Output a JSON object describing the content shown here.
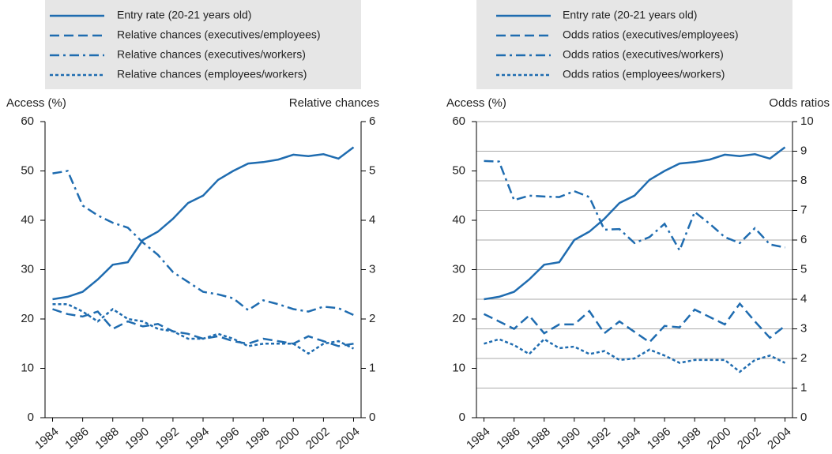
{
  "chart_data": [
    {
      "type": "line",
      "legend": "top",
      "grid": false,
      "y_label": "Access (%)",
      "y2_label": "Relative chances",
      "x": [
        1984,
        1985,
        1986,
        1987,
        1988,
        1989,
        1990,
        1991,
        1992,
        1993,
        1994,
        1995,
        1996,
        1997,
        1998,
        1999,
        2000,
        2001,
        2002,
        2003,
        2004
      ],
      "xlim": [
        1983.5,
        2004.5
      ],
      "xticks": [
        1984,
        1986,
        1988,
        1990,
        1992,
        1994,
        1996,
        1998,
        2000,
        2002,
        2004
      ],
      "ylim": [
        0,
        60
      ],
      "yticks": [
        0,
        10,
        20,
        30,
        40,
        50,
        60
      ],
      "y2lim": [
        0,
        6
      ],
      "y2ticks": [
        0,
        1,
        2,
        3,
        4,
        5,
        6
      ],
      "series": [
        {
          "name": "Entry rate (20-21 years old)",
          "color": "#1f6cb0",
          "dash": "solid",
          "values": [
            24,
            24.5,
            25.5,
            28,
            31,
            31.5,
            36,
            37.7,
            40.3,
            43.5,
            45,
            48.2,
            50,
            51.5,
            51.8,
            52.3,
            53.3,
            53,
            53.4,
            52.5,
            54.8
          ]
        },
        {
          "name": "Relative chances (executives/employees)",
          "color": "#1f6cb0",
          "dash": "dashed",
          "axis": "y2",
          "values": [
            2.2,
            2.1,
            2.05,
            2.15,
            1.8,
            1.95,
            1.85,
            1.9,
            1.75,
            1.7,
            1.6,
            1.65,
            1.55,
            1.5,
            1.6,
            1.55,
            1.5,
            1.65,
            1.55,
            1.45,
            1.5
          ]
        },
        {
          "name": "Relative chances (executives/workers)",
          "color": "#1f6cb0",
          "dash": "dashdot",
          "axis": "y2",
          "values": [
            4.95,
            5.0,
            4.3,
            4.1,
            3.95,
            3.85,
            3.55,
            3.3,
            2.95,
            2.75,
            2.55,
            2.5,
            2.42,
            2.18,
            2.38,
            2.3,
            2.2,
            2.15,
            2.25,
            2.22,
            2.08
          ]
        },
        {
          "name": "Relative chances (employees/workers)",
          "color": "#1f6cb0",
          "dash": "dotted",
          "axis": "y2",
          "values": [
            2.3,
            2.3,
            2.15,
            1.95,
            2.2,
            2.0,
            1.95,
            1.8,
            1.75,
            1.6,
            1.6,
            1.7,
            1.6,
            1.45,
            1.5,
            1.5,
            1.5,
            1.3,
            1.5,
            1.55,
            1.4
          ]
        }
      ]
    },
    {
      "type": "line",
      "legend": "top",
      "grid": "y2",
      "y_label": "Access (%)",
      "y2_label": "Odds ratios",
      "x": [
        1984,
        1985,
        1986,
        1987,
        1988,
        1989,
        1990,
        1991,
        1992,
        1993,
        1994,
        1995,
        1996,
        1997,
        1998,
        1999,
        2000,
        2001,
        2002,
        2003,
        2004
      ],
      "xlim": [
        1983.5,
        2004.5
      ],
      "xticks": [
        1984,
        1986,
        1988,
        1990,
        1992,
        1994,
        1996,
        1998,
        2000,
        2002,
        2004
      ],
      "ylim": [
        0,
        60
      ],
      "yticks": [
        0,
        10,
        20,
        30,
        40,
        50,
        60
      ],
      "y2lim": [
        0,
        10
      ],
      "y2ticks": [
        0,
        1,
        2,
        3,
        4,
        5,
        6,
        7,
        8,
        9,
        10
      ],
      "series": [
        {
          "name": "Entry rate (20-21 years old)",
          "color": "#1f6cb0",
          "dash": "solid",
          "values": [
            24,
            24.5,
            25.5,
            28,
            31,
            31.5,
            36,
            37.7,
            40.3,
            43.5,
            45,
            48.2,
            50,
            51.5,
            51.8,
            52.3,
            53.3,
            53,
            53.4,
            52.5,
            54.8
          ]
        },
        {
          "name": "Odds ratios (executives/employees)",
          "color": "#1f6cb0",
          "dash": "dashed",
          "axis": "y2",
          "values": [
            3.5,
            3.25,
            3.0,
            3.45,
            2.85,
            3.15,
            3.15,
            3.6,
            2.85,
            3.25,
            2.9,
            2.55,
            3.1,
            3.05,
            3.65,
            3.4,
            3.15,
            3.85,
            3.25,
            2.7,
            3.1
          ]
        },
        {
          "name": "Odds ratios (executives/workers)",
          "color": "#1f6cb0",
          "dash": "dashdot",
          "axis": "y2",
          "values": [
            8.67,
            8.65,
            7.35,
            7.5,
            7.47,
            7.45,
            7.65,
            7.45,
            6.35,
            6.37,
            5.9,
            6.1,
            6.55,
            5.65,
            6.95,
            6.55,
            6.1,
            5.9,
            6.4,
            5.85,
            5.75
          ]
        },
        {
          "name": "Odds ratios (employees/workers)",
          "color": "#1f6cb0",
          "dash": "dotted",
          "axis": "y2",
          "values": [
            2.5,
            2.65,
            2.45,
            2.15,
            2.65,
            2.35,
            2.4,
            2.15,
            2.25,
            1.95,
            2.0,
            2.3,
            2.1,
            1.85,
            1.95,
            1.95,
            1.95,
            1.55,
            1.95,
            2.1,
            1.85
          ]
        }
      ]
    }
  ]
}
